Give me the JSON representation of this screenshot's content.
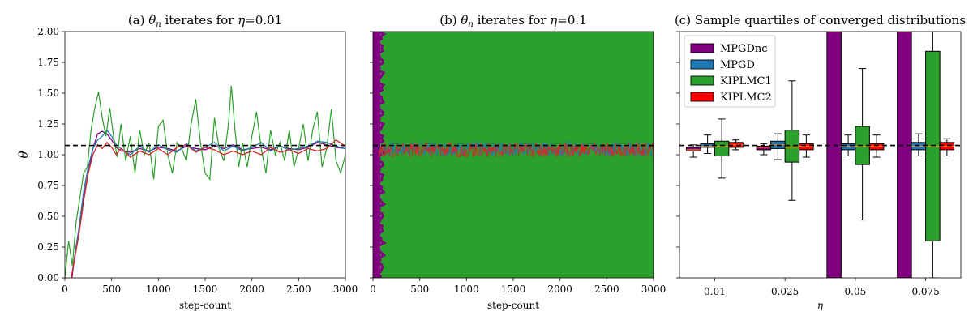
{
  "chart_data": [
    {
      "type": "line",
      "title": "(a) θₙ iterates for η=0.01",
      "title_parts": {
        "prefix": "(a) ",
        "symbol": "θ",
        "sub": "n",
        "mid": " iterates for ",
        "eta": "η",
        "suffix": "=0.01"
      },
      "xlabel": "step-count",
      "ylabel": "θ",
      "xlim": [
        0,
        3000
      ],
      "ylim": [
        0.0,
        2.0
      ],
      "x_ticks": [
        0,
        500,
        1000,
        1500,
        2000,
        2500,
        3000
      ],
      "y_ticks": [
        "0.00",
        "0.25",
        "0.50",
        "0.75",
        "1.00",
        "1.25",
        "1.50",
        "1.75",
        "2.00"
      ],
      "reference_line": 1.075,
      "series": [
        {
          "color": "#800080",
          "points": [
            [
              0,
              -0.3
            ],
            [
              60,
              -0.1
            ],
            [
              100,
              0.15
            ],
            [
              150,
              0.4
            ],
            [
              200,
              0.65
            ],
            [
              250,
              0.85
            ],
            [
              300,
              1.05
            ],
            [
              350,
              1.17
            ],
            [
              400,
              1.19
            ],
            [
              450,
              1.17
            ],
            [
              500,
              1.12
            ],
            [
              550,
              1.06
            ],
            [
              600,
              1.03
            ],
            [
              700,
              1.02
            ],
            [
              800,
              1.05
            ],
            [
              900,
              1.03
            ],
            [
              1000,
              1.06
            ],
            [
              1100,
              1.05
            ],
            [
              1200,
              1.03
            ],
            [
              1300,
              1.07
            ],
            [
              1400,
              1.05
            ],
            [
              1500,
              1.04
            ],
            [
              1600,
              1.07
            ],
            [
              1700,
              1.05
            ],
            [
              1800,
              1.08
            ],
            [
              1900,
              1.04
            ],
            [
              2000,
              1.05
            ],
            [
              2100,
              1.06
            ],
            [
              2200,
              1.04
            ],
            [
              2300,
              1.07
            ],
            [
              2400,
              1.05
            ],
            [
              2500,
              1.04
            ],
            [
              2600,
              1.06
            ],
            [
              2700,
              1.1
            ],
            [
              2800,
              1.08
            ],
            [
              2900,
              1.06
            ],
            [
              3000,
              1.05
            ]
          ]
        },
        {
          "color": "#1f77b4",
          "points": [
            [
              0,
              -0.3
            ],
            [
              80,
              0.05
            ],
            [
              150,
              0.4
            ],
            [
              200,
              0.7
            ],
            [
              250,
              0.9
            ],
            [
              300,
              1.05
            ],
            [
              350,
              1.12
            ],
            [
              400,
              1.15
            ],
            [
              450,
              1.2
            ],
            [
              500,
              1.15
            ],
            [
              550,
              1.08
            ],
            [
              600,
              1.05
            ],
            [
              700,
              1.0
            ],
            [
              800,
              1.07
            ],
            [
              900,
              1.02
            ],
            [
              1000,
              1.08
            ],
            [
              1100,
              1.04
            ],
            [
              1200,
              1.02
            ],
            [
              1300,
              1.09
            ],
            [
              1400,
              1.03
            ],
            [
              1500,
              1.06
            ],
            [
              1600,
              1.1
            ],
            [
              1700,
              1.03
            ],
            [
              1800,
              1.07
            ],
            [
              1900,
              1.03
            ],
            [
              2000,
              1.06
            ],
            [
              2100,
              1.1
            ],
            [
              2200,
              1.03
            ],
            [
              2300,
              1.07
            ],
            [
              2400,
              1.04
            ],
            [
              2500,
              1.05
            ],
            [
              2600,
              1.07
            ],
            [
              2700,
              1.11
            ],
            [
              2800,
              1.1
            ],
            [
              2900,
              1.07
            ],
            [
              3000,
              1.05
            ]
          ]
        },
        {
          "color": "#2ca02c",
          "points": [
            [
              0,
              0.0
            ],
            [
              40,
              0.3
            ],
            [
              80,
              0.1
            ],
            [
              120,
              0.45
            ],
            [
              160,
              0.65
            ],
            [
              200,
              0.85
            ],
            [
              240,
              0.9
            ],
            [
              280,
              1.2
            ],
            [
              320,
              1.38
            ],
            [
              360,
              1.51
            ],
            [
              400,
              1.3
            ],
            [
              440,
              1.15
            ],
            [
              480,
              1.38
            ],
            [
              520,
              1.15
            ],
            [
              560,
              0.98
            ],
            [
              600,
              1.25
            ],
            [
              650,
              0.95
            ],
            [
              700,
              1.15
            ],
            [
              750,
              0.85
            ],
            [
              800,
              1.2
            ],
            [
              850,
              1.0
            ],
            [
              900,
              1.1
            ],
            [
              950,
              0.8
            ],
            [
              1000,
              1.23
            ],
            [
              1050,
              1.28
            ],
            [
              1100,
              1.0
            ],
            [
              1150,
              0.85
            ],
            [
              1200,
              1.1
            ],
            [
              1250,
              1.05
            ],
            [
              1300,
              0.95
            ],
            [
              1350,
              1.25
            ],
            [
              1400,
              1.45
            ],
            [
              1450,
              1.1
            ],
            [
              1500,
              0.85
            ],
            [
              1550,
              0.8
            ],
            [
              1600,
              1.3
            ],
            [
              1650,
              1.05
            ],
            [
              1700,
              0.95
            ],
            [
              1750,
              1.25
            ],
            [
              1780,
              1.56
            ],
            [
              1820,
              1.2
            ],
            [
              1860,
              0.9
            ],
            [
              1900,
              1.1
            ],
            [
              1950,
              0.9
            ],
            [
              2000,
              1.15
            ],
            [
              2050,
              1.35
            ],
            [
              2100,
              1.05
            ],
            [
              2150,
              0.85
            ],
            [
              2200,
              1.2
            ],
            [
              2250,
              1.0
            ],
            [
              2300,
              1.1
            ],
            [
              2350,
              0.95
            ],
            [
              2400,
              1.2
            ],
            [
              2450,
              0.9
            ],
            [
              2500,
              1.05
            ],
            [
              2550,
              1.25
            ],
            [
              2600,
              0.95
            ],
            [
              2650,
              1.2
            ],
            [
              2700,
              1.35
            ],
            [
              2750,
              0.9
            ],
            [
              2800,
              1.05
            ],
            [
              2850,
              1.37
            ],
            [
              2900,
              0.95
            ],
            [
              2950,
              0.85
            ],
            [
              3000,
              1.0
            ]
          ]
        },
        {
          "color": "#d62728",
          "points": [
            [
              0,
              -0.3
            ],
            [
              80,
              0.05
            ],
            [
              150,
              0.35
            ],
            [
              200,
              0.62
            ],
            [
              250,
              0.85
            ],
            [
              300,
              1.0
            ],
            [
              350,
              1.08
            ],
            [
              400,
              1.05
            ],
            [
              450,
              1.1
            ],
            [
              500,
              1.06
            ],
            [
              550,
              1.0
            ],
            [
              600,
              1.05
            ],
            [
              650,
              1.02
            ],
            [
              700,
              0.98
            ],
            [
              800,
              1.03
            ],
            [
              900,
              1.0
            ],
            [
              1000,
              1.05
            ],
            [
              1100,
              1.0
            ],
            [
              1200,
              1.06
            ],
            [
              1300,
              1.08
            ],
            [
              1400,
              1.02
            ],
            [
              1500,
              1.06
            ],
            [
              1600,
              1.04
            ],
            [
              1700,
              1.0
            ],
            [
              1800,
              1.03
            ],
            [
              1900,
              1.0
            ],
            [
              2000,
              1.03
            ],
            [
              2100,
              1.0
            ],
            [
              2200,
              1.06
            ],
            [
              2300,
              1.02
            ],
            [
              2400,
              1.04
            ],
            [
              2500,
              1.01
            ],
            [
              2600,
              1.05
            ],
            [
              2700,
              1.03
            ],
            [
              2800,
              1.05
            ],
            [
              2900,
              1.12
            ],
            [
              3000,
              1.07
            ]
          ]
        }
      ]
    },
    {
      "type": "line",
      "title": "(b) θₙ iterates for η=0.1",
      "title_parts": {
        "prefix": "(b) ",
        "symbol": "θ",
        "sub": "n",
        "mid": " iterates for ",
        "eta": "η",
        "suffix": "=0.1"
      },
      "xlabel": "step-count",
      "xlim": [
        0,
        3000
      ],
      "ylim": [
        0.0,
        2.0
      ],
      "x_ticks": [
        0,
        500,
        1000,
        1500,
        2000,
        2500,
        3000
      ],
      "reference_line": 1.075,
      "filled_bands": [
        {
          "color": "#800080",
          "x": [
            0,
            80
          ],
          "y": [
            0.0,
            2.0
          ]
        },
        {
          "color": "#2ca02c",
          "x": [
            80,
            3000
          ],
          "y": [
            0.0,
            2.0
          ]
        }
      ],
      "noisy_series": [
        {
          "color": "#1f77b4",
          "center": 1.05,
          "amplitude": 0.06
        },
        {
          "color": "#d62728",
          "center": 1.04,
          "amplitude": 0.06
        }
      ]
    },
    {
      "type": "box",
      "title": "(c) Sample quartiles of converged distributions",
      "xlabel": "η",
      "categories": [
        "0.01",
        "0.025",
        "0.05",
        "0.075"
      ],
      "ylim": [
        0.0,
        2.0
      ],
      "reference_line": 1.075,
      "legend_position": "top-left",
      "series": [
        {
          "name": "MPGDnc",
          "color": "#800080",
          "boxes": [
            {
              "whislo": 0.98,
              "q1": 1.03,
              "med": 1.04,
              "q3": 1.06,
              "whishi": 1.08
            },
            {
              "whislo": 1.0,
              "q1": 1.04,
              "med": 1.06,
              "q3": 1.07,
              "whishi": 1.09
            },
            {
              "whislo": 0.0,
              "q1": 0.0,
              "med": 2.0,
              "q3": 2.0,
              "whishi": 2.0
            },
            {
              "whislo": 0.0,
              "q1": 0.0,
              "med": 2.0,
              "q3": 2.0,
              "whishi": 2.0
            }
          ]
        },
        {
          "name": "MPGD",
          "color": "#1f77b4",
          "boxes": [
            {
              "whislo": 1.01,
              "q1": 1.06,
              "med": 1.07,
              "q3": 1.09,
              "whishi": 1.16
            },
            {
              "whislo": 0.96,
              "q1": 1.05,
              "med": 1.08,
              "q3": 1.11,
              "whishi": 1.17
            },
            {
              "whislo": 0.99,
              "q1": 1.04,
              "med": 1.07,
              "q3": 1.09,
              "whishi": 1.16
            },
            {
              "whislo": 0.99,
              "q1": 1.04,
              "med": 1.07,
              "q3": 1.1,
              "whishi": 1.17
            }
          ]
        },
        {
          "name": "KIPLMC1",
          "color": "#2ca02c",
          "boxes": [
            {
              "whislo": 0.81,
              "q1": 0.99,
              "med": 1.07,
              "q3": 1.11,
              "whishi": 1.29
            },
            {
              "whislo": 0.63,
              "q1": 0.94,
              "med": 1.06,
              "q3": 1.2,
              "whishi": 1.6
            },
            {
              "whislo": 0.47,
              "q1": 0.92,
              "med": 1.07,
              "q3": 1.23,
              "whishi": 1.7
            },
            {
              "whislo": 0.0,
              "q1": 0.3,
              "med": 1.07,
              "q3": 1.84,
              "whishi": 2.0
            }
          ]
        },
        {
          "name": "KIPLMC2",
          "color": "#ff0000",
          "boxes": [
            {
              "whislo": 1.04,
              "q1": 1.06,
              "med": 1.08,
              "q3": 1.1,
              "whishi": 1.12
            },
            {
              "whislo": 0.98,
              "q1": 1.04,
              "med": 1.07,
              "q3": 1.09,
              "whishi": 1.16
            },
            {
              "whislo": 0.98,
              "q1": 1.04,
              "med": 1.07,
              "q3": 1.09,
              "whishi": 1.16
            },
            {
              "whislo": 0.99,
              "q1": 1.04,
              "med": 1.07,
              "q3": 1.1,
              "whishi": 1.13
            }
          ]
        }
      ]
    }
  ]
}
